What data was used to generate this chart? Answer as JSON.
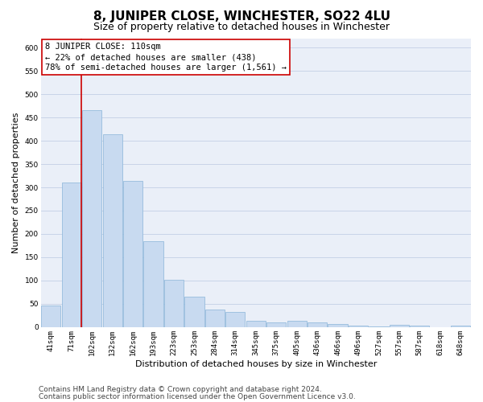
{
  "title": "8, JUNIPER CLOSE, WINCHESTER, SO22 4LU",
  "subtitle": "Size of property relative to detached houses in Winchester",
  "xlabel": "Distribution of detached houses by size in Winchester",
  "ylabel": "Number of detached properties",
  "categories": [
    "41sqm",
    "71sqm",
    "102sqm",
    "132sqm",
    "162sqm",
    "193sqm",
    "223sqm",
    "253sqm",
    "284sqm",
    "314sqm",
    "345sqm",
    "375sqm",
    "405sqm",
    "436sqm",
    "466sqm",
    "496sqm",
    "527sqm",
    "557sqm",
    "587sqm",
    "618sqm",
    "648sqm"
  ],
  "values": [
    47,
    310,
    465,
    413,
    313,
    185,
    102,
    65,
    38,
    32,
    13,
    10,
    13,
    10,
    6,
    3,
    1,
    5,
    3,
    0,
    3
  ],
  "bar_color": "#c8daf0",
  "bar_edge_color": "#8ab4d8",
  "grid_color": "#c8d4e8",
  "bg_color": "#eaeff8",
  "annotation_line1": "8 JUNIPER CLOSE: 110sqm",
  "annotation_line2": "← 22% of detached houses are smaller (438)",
  "annotation_line3": "78% of semi-detached houses are larger (1,561) →",
  "vline_color": "#cc0000",
  "vline_pos": 1.5,
  "ylim": [
    0,
    620
  ],
  "yticks": [
    0,
    50,
    100,
    150,
    200,
    250,
    300,
    350,
    400,
    450,
    500,
    550,
    600
  ],
  "footer1": "Contains HM Land Registry data © Crown copyright and database right 2024.",
  "footer2": "Contains public sector information licensed under the Open Government Licence v3.0.",
  "title_fontsize": 11,
  "subtitle_fontsize": 9,
  "axis_label_fontsize": 8,
  "tick_fontsize": 6.5,
  "annotation_fontsize": 7.5,
  "footer_fontsize": 6.5
}
